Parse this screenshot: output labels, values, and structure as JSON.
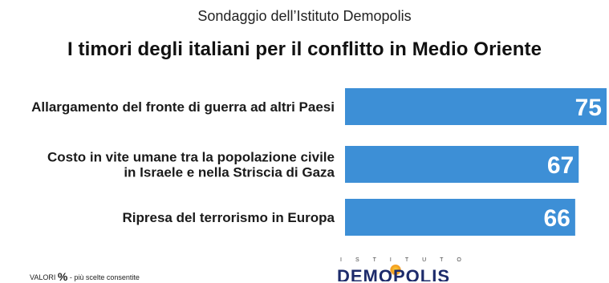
{
  "header": {
    "subtitle": "Sondaggio dell’Istituto Demopolis",
    "title": "I timori degli italiani per il conflitto in Medio Oriente"
  },
  "chart_data": {
    "type": "bar",
    "orientation": "horizontal",
    "title": "I timori degli italiani per il conflitto in Medio Oriente",
    "subtitle": "Sondaggio dell’Istituto Demopolis",
    "categories": [
      [
        "Allargamento del fronte di guerra ad altri Paesi"
      ],
      [
        "Costo in vite umane tra la popolazione civile",
        "in Israele e nella Striscia di Gaza"
      ],
      [
        "Ripresa del terrorismo in Europa"
      ]
    ],
    "values": [
      75,
      67,
      66
    ],
    "value_labels": [
      "75",
      "67",
      "66"
    ],
    "xlim": [
      0,
      75
    ],
    "grid": false,
    "legend": "none",
    "bar_color": "#3d8fd6",
    "value_label_color": "#ffffff"
  },
  "footer": {
    "note_prefix": "VALORI",
    "note_pct": "%",
    "note_suffix": "- più scelte consentite",
    "logo_kicker": "ISTITUTO",
    "logo_name": "DEMOPOLIS"
  }
}
